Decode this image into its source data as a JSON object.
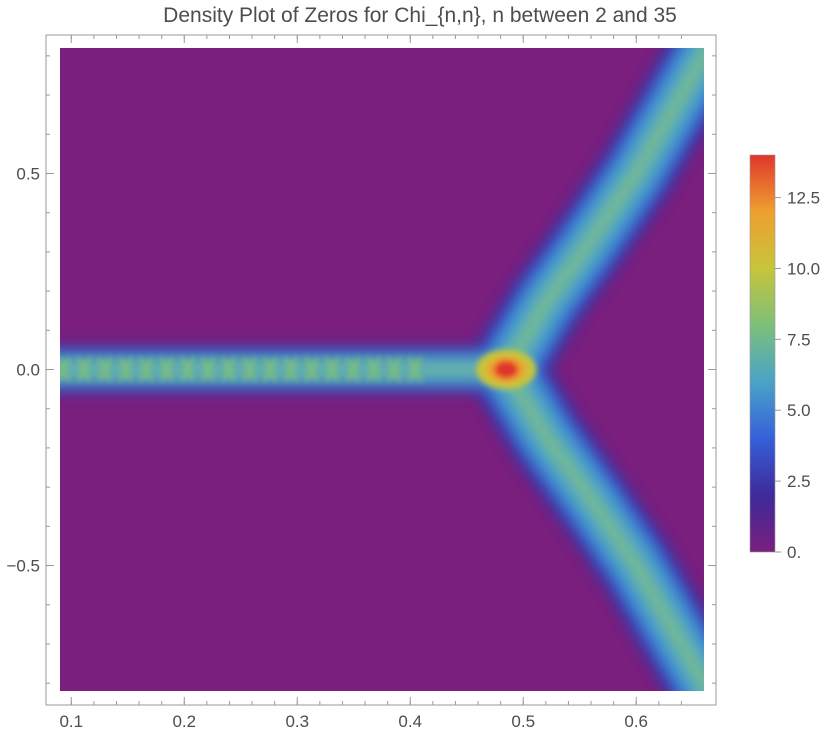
{
  "chart_data": {
    "type": "heatmap",
    "title": "Density Plot of Zeros for Chi_{n,n}, n between 2 and 35",
    "xlabel": "",
    "ylabel": "",
    "xlim": [
      0.09,
      0.66
    ],
    "ylim": [
      -0.82,
      0.82
    ],
    "x_ticks": [
      0.1,
      0.2,
      0.3,
      0.4,
      0.5,
      0.6
    ],
    "x_tick_labels": [
      "0.1",
      "0.2",
      "0.3",
      "0.4",
      "0.5",
      "0.6"
    ],
    "y_ticks": [
      0.5,
      0.0,
      -0.5
    ],
    "y_tick_labels": [
      "0.5",
      "0.0",
      "−0.5"
    ],
    "colorbar": {
      "range": [
        0,
        14
      ],
      "ticks": [
        12.5,
        10.0,
        7.5,
        5.0,
        2.5,
        0
      ],
      "tick_labels": [
        "12.5",
        "10.0",
        "7.5",
        "5.0",
        "2.5",
        "0."
      ],
      "colors": [
        "#7a1f7e",
        "#3e2a9a",
        "#3660d8",
        "#4aa3c8",
        "#7cc07a",
        "#c8c43a",
        "#eea030",
        "#e0362c"
      ]
    },
    "structure": {
      "branch_point": [
        0.485,
        0.0
      ],
      "peak_value": 13.8,
      "real_axis_segment": {
        "x_range": [
          0.09,
          0.45
        ],
        "y": 0.0,
        "value": 8.5
      },
      "upper_branch": [
        [
          0.485,
          0.0
        ],
        [
          0.52,
          0.17
        ],
        [
          0.56,
          0.33
        ],
        [
          0.6,
          0.5
        ],
        [
          0.63,
          0.65
        ],
        [
          0.66,
          0.8
        ]
      ],
      "lower_branch": [
        [
          0.485,
          0.0
        ],
        [
          0.52,
          -0.17
        ],
        [
          0.56,
          -0.33
        ],
        [
          0.6,
          -0.5
        ],
        [
          0.63,
          -0.65
        ],
        [
          0.66,
          -0.8
        ]
      ],
      "branch_value": 7.5
    }
  }
}
